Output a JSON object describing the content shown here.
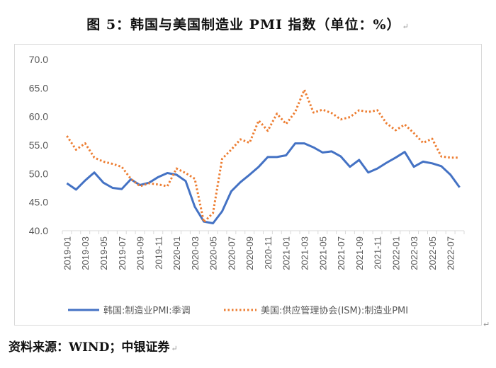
{
  "title": "图 5：韩国与美国制造业 PMI 指数（单位：%）",
  "source": "资料来源：WIND；中银证券",
  "return_mark": "↵",
  "colors": {
    "korea": "#4472C4",
    "us": "#ED7D31",
    "axis": "#D9D9D9",
    "text": "#595959"
  },
  "chart_data": {
    "type": "line",
    "title": "图 5：韩国与美国制造业 PMI 指数（单位：%）",
    "xlabel": "",
    "ylabel": "",
    "ylim": [
      40.0,
      70.0
    ],
    "yticks": [
      "40.0",
      "45.0",
      "50.0",
      "55.0",
      "60.0",
      "65.0",
      "70.0"
    ],
    "grid": false,
    "legend": "bottom",
    "x": [
      "2019-01",
      "2019-02",
      "2019-03",
      "2019-04",
      "2019-05",
      "2019-06",
      "2019-07",
      "2019-08",
      "2019-09",
      "2019-10",
      "2019-11",
      "2019-12",
      "2020-01",
      "2020-02",
      "2020-03",
      "2020-04",
      "2020-05",
      "2020-06",
      "2020-07",
      "2020-08",
      "2020-09",
      "2020-10",
      "2020-11",
      "2020-12",
      "2021-01",
      "2021-02",
      "2021-03",
      "2021-04",
      "2021-05",
      "2021-06",
      "2021-07",
      "2021-08",
      "2021-09",
      "2021-10",
      "2021-11",
      "2021-12",
      "2022-01",
      "2022-02",
      "2022-03",
      "2022-04",
      "2022-05",
      "2022-06",
      "2022-07",
      "2022-08"
    ],
    "xtick_labels": [
      "2019-01",
      "2019-03",
      "2019-05",
      "2019-07",
      "2019-09",
      "2019-11",
      "2020-01",
      "2020-03",
      "2020-05",
      "2020-07",
      "2020-09",
      "2020-11",
      "2021-01",
      "2021-03",
      "2021-05",
      "2021-07",
      "2021-09",
      "2021-11",
      "2022-01",
      "2022-03",
      "2022-05",
      "2022-07"
    ],
    "series": [
      {
        "name": "韩国:制造业PMI:季调",
        "style": "solid",
        "values": [
          48.3,
          47.2,
          48.8,
          50.2,
          48.4,
          47.5,
          47.3,
          49.0,
          48.0,
          48.4,
          49.4,
          50.1,
          49.8,
          48.7,
          44.2,
          41.6,
          41.3,
          43.4,
          46.9,
          48.5,
          49.8,
          51.2,
          52.9,
          52.9,
          53.2,
          55.3,
          55.3,
          54.6,
          53.7,
          53.9,
          53.0,
          51.2,
          52.4,
          50.2,
          50.9,
          51.9,
          52.8,
          53.8,
          51.2,
          52.1,
          51.8,
          51.3,
          49.8,
          47.6
        ]
      },
      {
        "name": "美国:供应管理协会(ISM):制造业PMI",
        "style": "dotted",
        "values": [
          56.6,
          54.2,
          55.3,
          52.8,
          52.1,
          51.7,
          51.2,
          49.1,
          47.8,
          48.3,
          48.1,
          47.8,
          50.9,
          50.1,
          49.1,
          41.5,
          43.1,
          52.6,
          54.2,
          56.0,
          55.4,
          59.3,
          57.5,
          60.5,
          58.7,
          60.8,
          64.7,
          60.7,
          61.2,
          60.6,
          59.5,
          59.9,
          61.1,
          60.8,
          61.1,
          58.8,
          57.6,
          58.6,
          57.1,
          55.4,
          56.1,
          53.0,
          52.8,
          52.8
        ]
      }
    ]
  }
}
